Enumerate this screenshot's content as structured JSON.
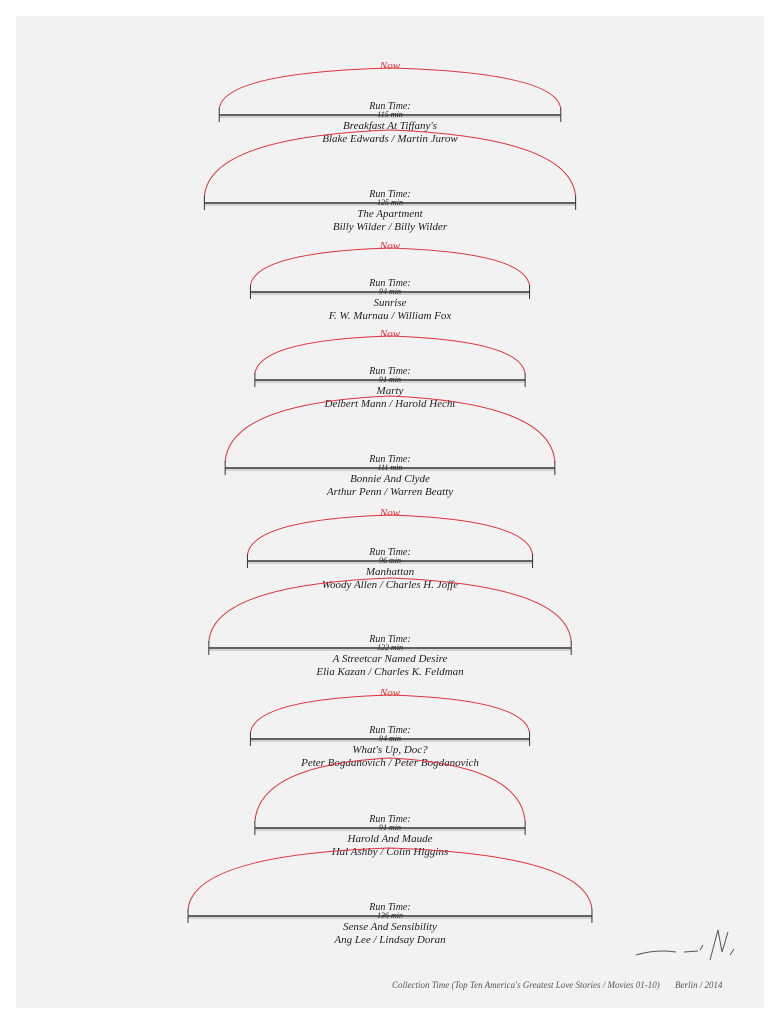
{
  "artwork": {
    "entries": [
      {
        "now": "Now",
        "run_label": "Run Time:",
        "run_time": "115 min",
        "title": "Breakfast At Tiffany's",
        "credits": "Blake Edwards / Martin Jurow"
      },
      {
        "run_label": "Run Time:",
        "run_time": "125 min",
        "title": "The Apartment",
        "credits": "Billy Wilder / Billy Wilder"
      },
      {
        "now": "Now",
        "run_label": "Run Time:",
        "run_time": "94 min",
        "title": "Sunrise",
        "credits": "F. W. Murnau / William Fox"
      },
      {
        "now": "Now",
        "run_label": "Run Time:",
        "run_time": "91 min",
        "title": "Marty",
        "credits": "Delbert Mann / Harold Hecht"
      },
      {
        "run_label": "Run Time:",
        "run_time": "111 min",
        "title": "Bonnie And Clyde",
        "credits": "Arthur Penn / Warren Beatty"
      },
      {
        "now": "Now",
        "run_label": "Run Time:",
        "run_time": "96 min",
        "title": "Manhattan",
        "credits": "Woody Allen / Charles H. Joffe"
      },
      {
        "run_label": "Run Time:",
        "run_time": "122 min",
        "title": "A Streetcar Named Desire",
        "credits": "Elia Kazan / Charles K. Feldman"
      },
      {
        "now": "Now",
        "run_label": "Run Time:",
        "run_time": "94 min",
        "title": "What's Up, Doc?",
        "credits": "Peter Bogdanovich / Peter Bogdanovich"
      },
      {
        "run_label": "Run Time:",
        "run_time": "91 min",
        "title": "Harold And Maude",
        "credits": "Hal Ashby / Colin Higgins"
      },
      {
        "run_label": "Run Time:",
        "run_time": "136 min",
        "title": "Sense And Sensibility",
        "credits": "Ang Lee / Lindsay Doran"
      }
    ],
    "footer": {
      "caption": "Collection Time (Top Ten America's Greatest Love Stories / Movies 01-10)",
      "place_date": "Berlin / 2014"
    }
  }
}
